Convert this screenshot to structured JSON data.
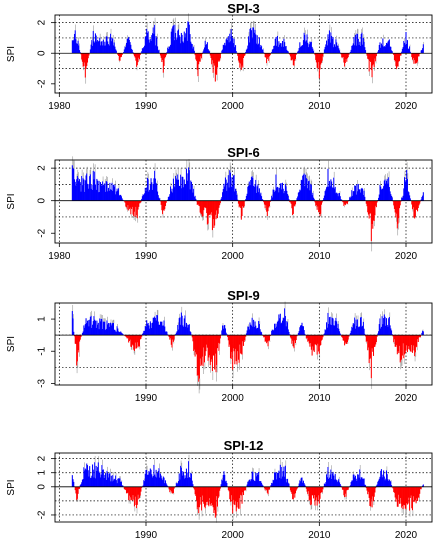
{
  "chart_data": [
    {
      "type": "area",
      "title": "SPI-3",
      "xlabel": "",
      "ylabel": "SPI",
      "xlim": [
        1979.5,
        2023
      ],
      "ylim": [
        -2.6,
        2.5
      ],
      "yticks": [
        -2,
        0,
        2
      ],
      "xticks": [
        1980,
        1990,
        2000,
        2010,
        2020
      ],
      "gridlines_y": [
        -1,
        1,
        2
      ],
      "grid": true,
      "xtick_labels_visible": true,
      "colors": {
        "positive": "#0000ff",
        "negative": "#ff0000",
        "line": "#999999"
      },
      "series": [
        {
          "x": [
            1981.5,
            1982,
            1983,
            1984,
            1985,
            1986,
            1987,
            1988,
            1989,
            1990,
            1991,
            1992,
            1993,
            1994,
            1995,
            1996,
            1997,
            1998,
            1999,
            2000,
            2001,
            2002,
            2003,
            2004,
            2005,
            2006,
            2007,
            2008,
            2009,
            2010,
            2011,
            2012,
            2013,
            2014,
            2015,
            2016,
            2017,
            2018,
            2019,
            2020,
            2021,
            2022
          ],
          "y": [
            2.0,
            1.2,
            -1.5,
            1.6,
            0.8,
            1.3,
            -0.6,
            1.2,
            -1.0,
            1.5,
            1.7,
            -1.2,
            1.9,
            1.4,
            2.3,
            -1.4,
            1.2,
            -2.0,
            0.9,
            1.6,
            -1.5,
            1.7,
            1.3,
            -0.8,
            1.2,
            0.9,
            -1.0,
            1.4,
            1.0,
            -1.5,
            1.6,
            0.8,
            -1.0,
            1.1,
            1.3,
            -1.9,
            0.9,
            1.2,
            -1.3,
            1.5,
            -1.1,
            0.6
          ]
        }
      ]
    },
    {
      "type": "area",
      "title": "SPI-6",
      "xlabel": "",
      "ylabel": "SPI",
      "xlim": [
        1979.5,
        2023
      ],
      "ylim": [
        -2.6,
        2.5
      ],
      "yticks": [
        -2,
        0,
        2
      ],
      "xticks": [
        1980,
        1990,
        2000,
        2010,
        2020
      ],
      "gridlines_y": [
        -1,
        1,
        2
      ],
      "grid": true,
      "xtick_labels_visible": true,
      "colors": {
        "positive": "#0000ff",
        "negative": "#ff0000",
        "line": "#999999"
      },
      "series": [
        {
          "x": [
            1981.5,
            1982,
            1983,
            1984,
            1985,
            1986,
            1987,
            1988,
            1989,
            1990,
            1991,
            1992,
            1993,
            1994,
            1995,
            1996,
            1997,
            1998,
            1999,
            2000,
            2001,
            2002,
            2003,
            2004,
            2005,
            2006,
            2007,
            2008,
            2009,
            2010,
            2011,
            2012,
            2013,
            2014,
            2015,
            2016,
            2017,
            2018,
            2019,
            2020,
            2021,
            2022
          ],
          "y": [
            2.0,
            1.4,
            1.5,
            1.7,
            1.1,
            1.2,
            0.6,
            -0.8,
            -1.0,
            1.2,
            1.7,
            -1.0,
            1.3,
            1.6,
            2.0,
            -0.5,
            -1.3,
            -2.0,
            1.2,
            2.0,
            -1.3,
            1.6,
            1.0,
            -0.9,
            1.5,
            1.2,
            -1.0,
            1.8,
            1.1,
            -1.3,
            1.9,
            1.0,
            -0.6,
            1.0,
            1.2,
            -2.4,
            0.9,
            1.5,
            -1.6,
            2.0,
            -1.4,
            0.6
          ]
        }
      ]
    },
    {
      "type": "area",
      "title": "SPI-9",
      "xlabel": "",
      "ylabel": "SPI",
      "xlim": [
        1979.5,
        2023
      ],
      "ylim": [
        -3.1,
        2.0
      ],
      "yticks": [
        -3,
        -1,
        1
      ],
      "xticks": [
        1990,
        2000,
        2010,
        2020
      ],
      "gridlines_y": [
        -2,
        0
      ],
      "grid": true,
      "xtick_labels_visible": true,
      "colors": {
        "positive": "#0000ff",
        "negative": "#ff0000",
        "line": "#999999"
      },
      "series": [
        {
          "x": [
            1981.5,
            1982,
            1983,
            1984,
            1985,
            1986,
            1987,
            1988,
            1989,
            1990,
            1991,
            1992,
            1993,
            1994,
            1995,
            1996,
            1997,
            1998,
            1999,
            2000,
            2001,
            2002,
            2003,
            2004,
            2005,
            2006,
            2007,
            2008,
            2009,
            2010,
            2011,
            2012,
            2013,
            2014,
            2015,
            2016,
            2017,
            2018,
            2019,
            2020,
            2021,
            2022
          ],
          "y": [
            1.6,
            -1.8,
            1.2,
            1.1,
            0.9,
            0.8,
            0.4,
            -0.5,
            -1.2,
            1.0,
            1.2,
            1.0,
            -0.8,
            1.4,
            1.0,
            -2.8,
            -1.3,
            -2.4,
            1.2,
            -2.2,
            -1.4,
            1.2,
            0.8,
            -0.9,
            1.4,
            1.6,
            -1.0,
            1.0,
            -1.4,
            -1.2,
            1.3,
            1.0,
            -0.9,
            1.0,
            1.1,
            -2.6,
            1.0,
            1.4,
            -1.8,
            -1.2,
            -1.2,
            0.4
          ]
        }
      ]
    },
    {
      "type": "area",
      "title": "SPI-12",
      "xlabel": "",
      "ylabel": "SPI",
      "xlim": [
        1979.5,
        2023
      ],
      "ylim": [
        -2.5,
        2.4
      ],
      "yticks": [
        -2,
        0,
        1,
        2
      ],
      "xticks": [
        1990,
        2000,
        2010,
        2020
      ],
      "gridlines_y": [
        -2,
        -1,
        1,
        2
      ],
      "grid": true,
      "xtick_labels_visible": true,
      "colors": {
        "positive": "#0000ff",
        "negative": "#ff0000",
        "line": "#999999"
      },
      "series": [
        {
          "x": [
            1981.5,
            1982,
            1983,
            1984,
            1985,
            1986,
            1987,
            1988,
            1989,
            1990,
            1991,
            1992,
            1993,
            1994,
            1995,
            1996,
            1997,
            1998,
            1999,
            2000,
            2001,
            2002,
            2003,
            2004,
            2005,
            2006,
            2007,
            2008,
            2009,
            2010,
            2011,
            2012,
            2013,
            2014,
            2015,
            2016,
            2017,
            2018,
            2019,
            2020,
            2021,
            2022
          ],
          "y": [
            1.2,
            -1.1,
            1.8,
            1.7,
            1.5,
            0.9,
            0.6,
            -0.9,
            -1.6,
            1.2,
            1.6,
            1.0,
            -0.8,
            1.4,
            1.8,
            -2.0,
            -1.4,
            -2.4,
            1.5,
            -2.0,
            -1.5,
            1.0,
            1.1,
            -0.7,
            1.3,
            1.6,
            -1.2,
            1.0,
            -1.3,
            -1.2,
            1.3,
            1.1,
            -0.9,
            1.0,
            1.2,
            -1.9,
            1.5,
            1.0,
            -1.6,
            -1.5,
            -1.8,
            0.3
          ]
        }
      ]
    }
  ]
}
